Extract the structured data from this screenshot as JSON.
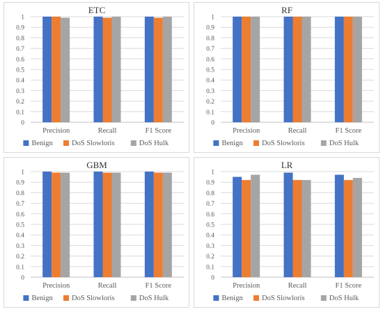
{
  "chart_data": [
    {
      "type": "bar",
      "title": "ETC",
      "categories": [
        "Precision",
        "Recall",
        "F1 Score"
      ],
      "ylim": [
        0,
        1
      ],
      "yticks": [
        "0",
        "0.1",
        "0.2",
        "0.3",
        "0.4",
        "0.5",
        "0.6",
        "0.7",
        "0.8",
        "0.9",
        "1"
      ],
      "grid": true,
      "legend_position": "bottom",
      "series": [
        {
          "name": "Benign",
          "color": "#4472C4",
          "values": [
            1.0,
            1.0,
            1.0
          ]
        },
        {
          "name": "DoS Slowloris",
          "color": "#ED7D31",
          "values": [
            1.0,
            0.99,
            0.99
          ]
        },
        {
          "name": "DoS Hulk",
          "color": "#A5A5A5",
          "values": [
            0.99,
            1.0,
            1.0
          ]
        }
      ]
    },
    {
      "type": "bar",
      "title": "RF",
      "categories": [
        "Precision",
        "Recall",
        "F1 Score"
      ],
      "ylim": [
        0,
        1
      ],
      "yticks": [
        "0",
        "0.1",
        "0.2",
        "0.3",
        "0.4",
        "0.5",
        "0.6",
        "0.7",
        "0.8",
        "0.9",
        "1"
      ],
      "grid": true,
      "legend_position": "bottom",
      "series": [
        {
          "name": "Benign",
          "color": "#4472C4",
          "values": [
            1.0,
            1.0,
            1.0
          ]
        },
        {
          "name": "DoS Slowloris",
          "color": "#ED7D31",
          "values": [
            1.0,
            1.0,
            1.0
          ]
        },
        {
          "name": "DoS Hulk",
          "color": "#A5A5A5",
          "values": [
            1.0,
            1.0,
            1.0
          ]
        }
      ]
    },
    {
      "type": "bar",
      "title": "GBM",
      "categories": [
        "Precision",
        "Recall",
        "F1 Score"
      ],
      "ylim": [
        0,
        1
      ],
      "yticks": [
        "0",
        "0.1",
        "0.2",
        "0.3",
        "0.4",
        "0.5",
        "0.6",
        "0.7",
        "0.8",
        "0.9",
        "1"
      ],
      "grid": true,
      "legend_position": "bottom",
      "series": [
        {
          "name": "Benign",
          "color": "#4472C4",
          "values": [
            1.0,
            1.0,
            1.0
          ]
        },
        {
          "name": "DoS Slowloris",
          "color": "#ED7D31",
          "values": [
            0.99,
            0.99,
            0.99
          ]
        },
        {
          "name": "DoS Hulk",
          "color": "#A5A5A5",
          "values": [
            0.99,
            0.99,
            0.99
          ]
        }
      ]
    },
    {
      "type": "bar",
      "title": "LR",
      "categories": [
        "Precision",
        "Recall",
        "F1 Score"
      ],
      "ylim": [
        0,
        1
      ],
      "yticks": [
        "0",
        "0.1",
        "0.2",
        "0.3",
        "0.4",
        "0.5",
        "0.6",
        "0.7",
        "0.8",
        "0.9",
        "1"
      ],
      "grid": true,
      "legend_position": "bottom",
      "series": [
        {
          "name": "Benign",
          "color": "#4472C4",
          "values": [
            0.95,
            0.99,
            0.97
          ]
        },
        {
          "name": "DoS Slowloris",
          "color": "#ED7D31",
          "values": [
            0.92,
            0.92,
            0.92
          ]
        },
        {
          "name": "DoS Hulk",
          "color": "#A5A5A5",
          "values": [
            0.97,
            0.92,
            0.94
          ]
        }
      ]
    }
  ]
}
